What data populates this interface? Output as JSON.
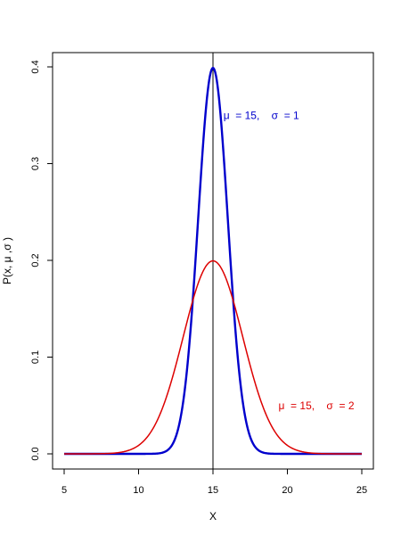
{
  "chart_data": {
    "type": "line",
    "xlabel": "X",
    "ylabel": "P(x, μ ,σ )",
    "xlim": [
      5,
      25
    ],
    "ylim": [
      0,
      0.4
    ],
    "xticks": [
      "5",
      "10",
      "15",
      "20",
      "25"
    ],
    "yticks": [
      "0.0",
      "0.1",
      "0.2",
      "0.3",
      "0.4"
    ],
    "grid": false,
    "vline_x": 15,
    "series": [
      {
        "mu": 15,
        "sigma": 1,
        "color": "#0000cc",
        "line_width": 2.4
      },
      {
        "mu": 15,
        "sigma": 2,
        "color": "#dd0000",
        "line_width": 1.5
      }
    ],
    "annotations": [
      {
        "text": "μ  = 15,    σ  = 1",
        "x": 15.7,
        "y": 0.35,
        "color": "#0000cc"
      },
      {
        "text": "μ  = 15,    σ  = 2",
        "x": 19.4,
        "y": 0.05,
        "color": "#dd0000"
      }
    ]
  }
}
